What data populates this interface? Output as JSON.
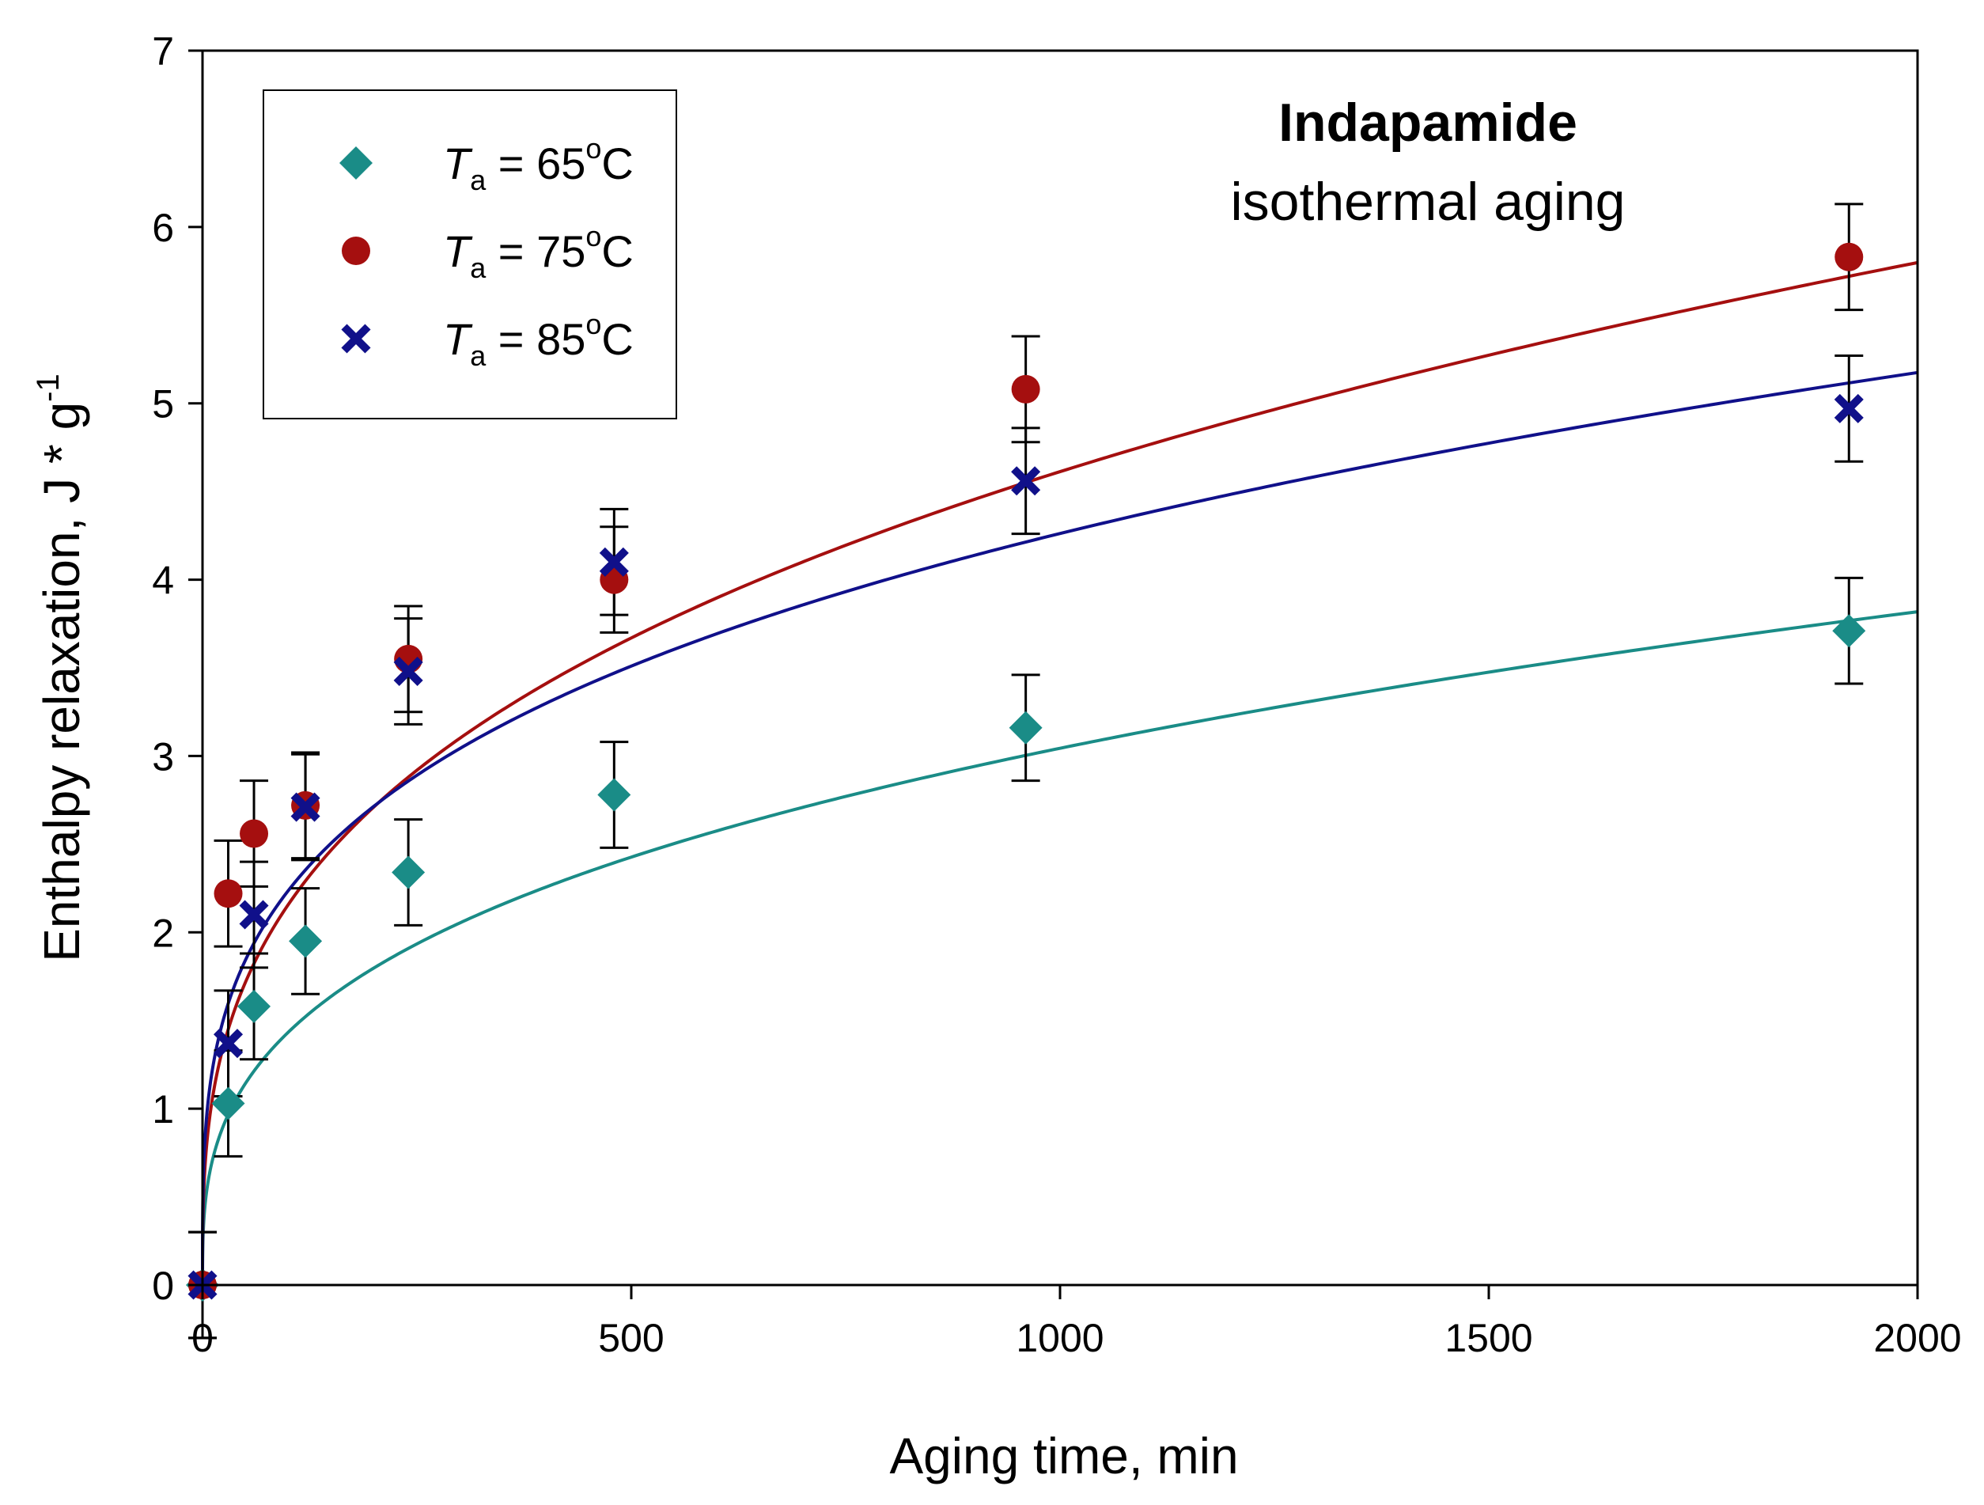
{
  "chart_data": {
    "type": "scatter",
    "title": "Indapamide",
    "subtitle": "isothermal aging",
    "xlabel": "Aging time, min",
    "ylabel": {
      "main": "Enthalpy relaxation, J * g",
      "sup": "-1"
    },
    "xlim": [
      0,
      2000
    ],
    "ylim": [
      0,
      7
    ],
    "xticks": [
      0,
      500,
      1000,
      1500,
      2000
    ],
    "yticks": [
      0,
      1,
      2,
      3,
      4,
      5,
      6,
      7
    ],
    "grid": false,
    "legend_position": "top-left",
    "series": [
      {
        "name": "Ta = 65°C",
        "legend": {
          "sym": "T",
          "sub": "a",
          "eq": " = 65",
          "deg": "o",
          "unit": "C"
        },
        "marker": "diamond",
        "color": "#1a8c87",
        "x": [
          0,
          30,
          60,
          120,
          240,
          480,
          960,
          1920
        ],
        "y": [
          0,
          1.03,
          1.58,
          1.95,
          2.34,
          2.78,
          3.16,
          3.71
        ],
        "err": [
          0.3,
          0.3,
          0.3,
          0.3,
          0.3,
          0.3,
          0.3,
          0.3
        ],
        "fit": {
          "a": 0.318,
          "b": 0.327
        }
      },
      {
        "name": "Ta = 75°C",
        "legend": {
          "sym": "T",
          "sub": "a",
          "eq": " = 75",
          "deg": "o",
          "unit": "C"
        },
        "marker": "circle",
        "color": "#a50f0f",
        "x": [
          0,
          30,
          60,
          120,
          240,
          480,
          960,
          1920
        ],
        "y": [
          0,
          2.22,
          2.56,
          2.72,
          3.55,
          4.0,
          5.08,
          5.83
        ],
        "err": [
          0.3,
          0.3,
          0.3,
          0.3,
          0.3,
          0.3,
          0.3,
          0.3
        ],
        "fit": {
          "a": 0.472,
          "b": 0.33
        }
      },
      {
        "name": "Ta = 85°C",
        "legend": {
          "sym": "T",
          "sub": "a",
          "eq": " = 85",
          "deg": "o",
          "unit": "C"
        },
        "marker": "x",
        "color": "#10108a",
        "x": [
          0,
          30,
          60,
          120,
          240,
          480,
          960,
          1920
        ],
        "y": [
          0,
          1.37,
          2.1,
          2.71,
          3.48,
          4.1,
          4.56,
          4.97
        ],
        "err": [
          0.3,
          0.3,
          0.3,
          0.3,
          0.3,
          0.3,
          0.3,
          0.3
        ],
        "fit": {
          "a": 0.616,
          "b": 0.28
        }
      }
    ]
  }
}
